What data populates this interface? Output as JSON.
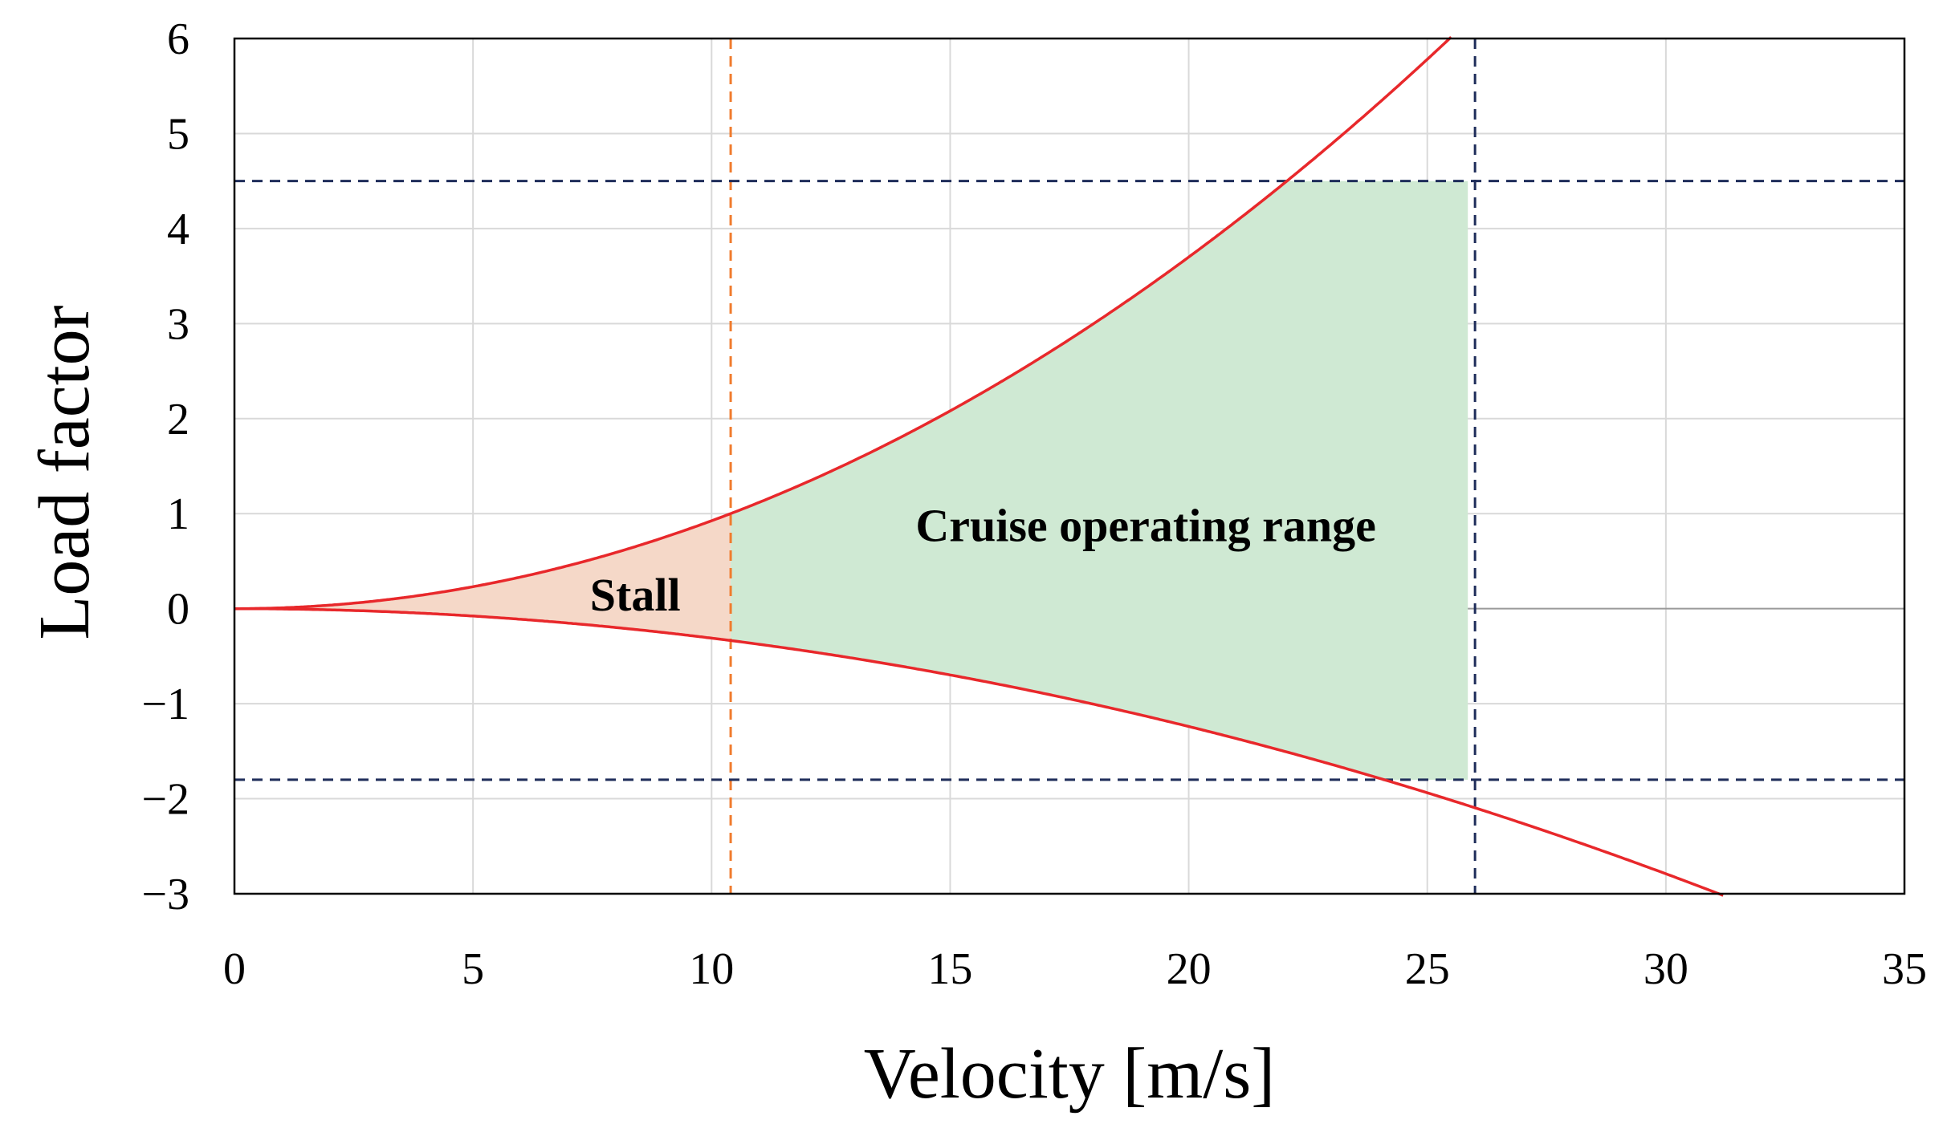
{
  "chart_data": {
    "type": "line",
    "title": "",
    "xlabel": "Velocity [m/s]",
    "ylabel": "Load factor",
    "xlim": [
      0,
      35
    ],
    "ylim": [
      -3,
      6
    ],
    "xticks": [
      0,
      5,
      10,
      15,
      20,
      25,
      30,
      35
    ],
    "xtick_labels": [
      "0",
      "5",
      "10",
      "15",
      "20",
      "25",
      "30",
      "35"
    ],
    "yticks": [
      -3,
      -2,
      -1,
      0,
      1,
      2,
      3,
      4,
      5,
      6
    ],
    "ytick_labels": [
      "−3",
      "−2",
      "−1",
      "0",
      "1",
      "2",
      "3",
      "4",
      "5",
      "6"
    ],
    "grid": true,
    "series": [
      {
        "name": "Positive stall limit",
        "color": "#e8282b",
        "coefficient": 0.00925,
        "x_range": [
          0,
          25.5
        ]
      },
      {
        "name": "Negative stall limit",
        "color": "#e8282b",
        "coefficient": -0.0031,
        "x_range": [
          0,
          31.2
        ]
      }
    ],
    "reference_lines": [
      {
        "name": "Stall speed",
        "orientation": "vertical",
        "value": 10.4,
        "color": "#f07c2e",
        "style": "dashed"
      },
      {
        "name": "Max speed",
        "orientation": "vertical",
        "value": 26,
        "color": "#1f2d5a",
        "style": "dashed"
      },
      {
        "name": "Positive load limit",
        "orientation": "horizontal",
        "value": 4.5,
        "color": "#1f2d5a",
        "style": "dashed"
      },
      {
        "name": "Negative load limit",
        "orientation": "horizontal",
        "value": -1.8,
        "color": "#1f2d5a",
        "style": "dashed"
      }
    ],
    "regions": [
      {
        "name": "Stall",
        "label": "Stall",
        "color": "#f5d8c8",
        "x_range": [
          0,
          10.4
        ],
        "label_at": [
          8.4,
          0.15
        ]
      },
      {
        "name": "Cruise operating range",
        "label": "Cruise operating range",
        "color": "#cfe9d3",
        "x_range": [
          10.4,
          25.85
        ],
        "y_limits": [
          -1.8,
          4.5
        ],
        "label_at": [
          19.1,
          0.88
        ]
      }
    ]
  }
}
